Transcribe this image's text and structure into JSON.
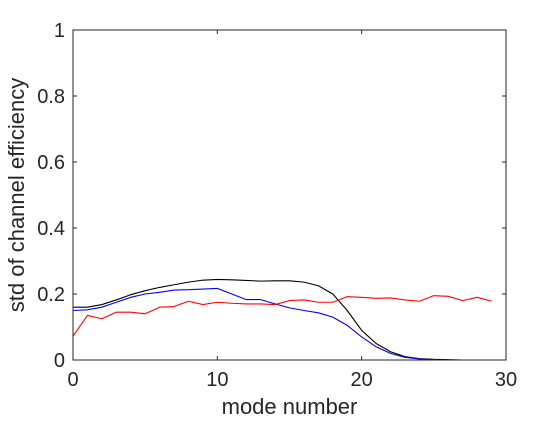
{
  "chart_data": {
    "type": "line",
    "xlabel": "mode number",
    "ylabel": "std of channel efficiency",
    "xlim": [
      0,
      30
    ],
    "ylim": [
      0,
      1
    ],
    "xticks": [
      0,
      10,
      20,
      30
    ],
    "yticks": [
      0,
      0.2,
      0.4,
      0.6,
      0.8,
      1
    ],
    "xtick_labels": [
      "0",
      "10",
      "20",
      "30"
    ],
    "ytick_labels": [
      "0",
      "0.2",
      "0.4",
      "0.6",
      "0.8",
      "1"
    ],
    "grid": false,
    "legend": "none",
    "x": [
      0,
      1,
      2,
      3,
      4,
      5,
      6,
      7,
      8,
      9,
      10,
      11,
      12,
      13,
      14,
      15,
      16,
      17,
      18,
      19,
      20,
      21,
      22,
      23,
      24,
      25,
      26,
      27,
      28,
      29
    ],
    "series": [
      {
        "color": "#000000",
        "values": [
          0.16,
          0.16,
          0.168,
          0.182,
          0.198,
          0.21,
          0.22,
          0.228,
          0.236,
          0.242,
          0.244,
          0.243,
          0.241,
          0.239,
          0.24,
          0.24,
          0.236,
          0.225,
          0.2,
          0.15,
          0.09,
          0.05,
          0.025,
          0.01,
          0.004,
          0.002,
          0.001,
          0,
          0,
          0
        ]
      },
      {
        "color": "#0000ff",
        "values": [
          0.15,
          0.152,
          0.16,
          0.175,
          0.19,
          0.2,
          0.205,
          0.212,
          0.213,
          0.215,
          0.217,
          0.2,
          0.183,
          0.183,
          0.17,
          0.158,
          0.15,
          0.143,
          0.13,
          0.105,
          0.07,
          0.04,
          0.02,
          0.008,
          0.003,
          0.001,
          0,
          0,
          0,
          0
        ]
      },
      {
        "color": "#ff0000",
        "values": [
          0.072,
          0.135,
          0.125,
          0.145,
          0.145,
          0.14,
          0.16,
          0.162,
          0.178,
          0.168,
          0.175,
          0.172,
          0.17,
          0.17,
          0.168,
          0.18,
          0.182,
          0.175,
          0.175,
          0.192,
          0.19,
          0.187,
          0.188,
          0.182,
          0.178,
          0.195,
          0.193,
          0.18,
          0.19,
          0.178
        ]
      }
    ]
  }
}
